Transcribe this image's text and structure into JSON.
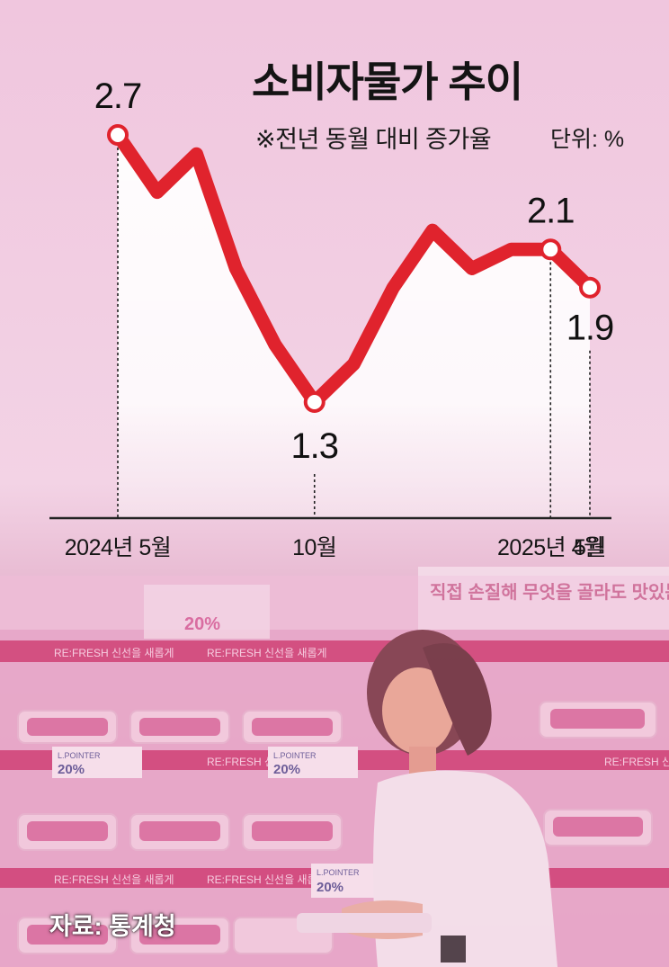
{
  "title": "소비자물가 추이",
  "subtitle": "※전년 동월 대비 증가율",
  "unit": "단위: %",
  "source": "자료: 통계청",
  "colors": {
    "line": "#e0232d",
    "background_top": "#f0c6de",
    "photo_tint": "#e8a3c6",
    "axis": "#222222"
  },
  "photo_signs": {
    "refresh": "RE:FRESH 신선을 새롭게",
    "banner": "직접 손질해 무엇을 골라도 맛있는 한",
    "lpointer": "L.POINTER",
    "discount": "20%"
  },
  "chart_data": {
    "type": "line",
    "title": "소비자물가 추이",
    "subtitle": "※전년 동월 대비 증가율",
    "unit": "%",
    "x": [
      "2024-05",
      "2024-06",
      "2024-07",
      "2024-08",
      "2024-09",
      "2024-10",
      "2024-11",
      "2024-12",
      "2025-01",
      "2025-02",
      "2025-03",
      "2025-04",
      "2025-05"
    ],
    "values": [
      2.7,
      2.4,
      2.6,
      2.0,
      1.6,
      1.3,
      1.5,
      1.9,
      2.2,
      2.0,
      2.1,
      2.1,
      1.9
    ],
    "x_tick_labels": [
      {
        "x": "2024-05",
        "label": "2024년 5월"
      },
      {
        "x": "2024-10",
        "label": "10월"
      },
      {
        "x": "2025-04",
        "label": "2025년 4월"
      },
      {
        "x": "2025-05",
        "label": "5월"
      }
    ],
    "highlighted": [
      {
        "x": "2024-05",
        "value": 2.7,
        "label": "2.7"
      },
      {
        "x": "2024-10",
        "value": 1.3,
        "label": "1.3"
      },
      {
        "x": "2025-04",
        "value": 2.1,
        "label": "2.1"
      },
      {
        "x": "2025-05",
        "value": 1.9,
        "label": "1.9"
      }
    ],
    "grid": false,
    "legend": "none"
  }
}
